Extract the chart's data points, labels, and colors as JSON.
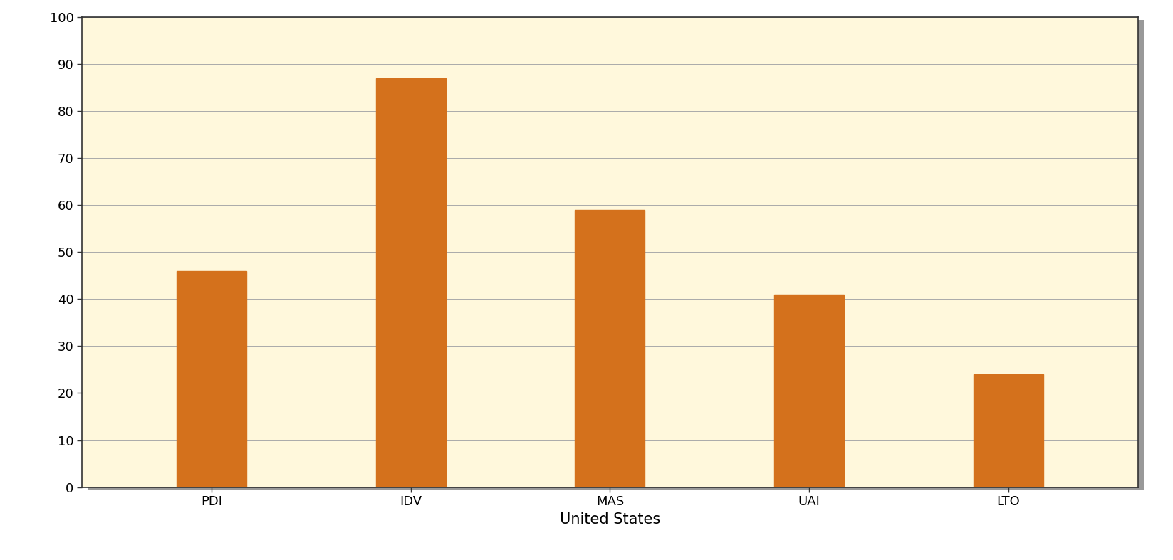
{
  "categories": [
    "PDI",
    "IDV",
    "MAS",
    "UAI",
    "LTO"
  ],
  "values": [
    46,
    87,
    59,
    41,
    24
  ],
  "bar_color": "#D4711C",
  "plot_bg_color": "#FFF8DC",
  "outer_bg_color": "#FFFFFF",
  "title": "United States",
  "title_fontsize": 15,
  "ylabel_ticks": [
    0,
    10,
    20,
    30,
    40,
    50,
    60,
    70,
    80,
    90,
    100
  ],
  "ylim": [
    0,
    100
  ],
  "grid_color": "#AAAAAA",
  "tick_label_fontsize": 13,
  "xlabel_fontsize": 15,
  "bar_width": 0.35
}
